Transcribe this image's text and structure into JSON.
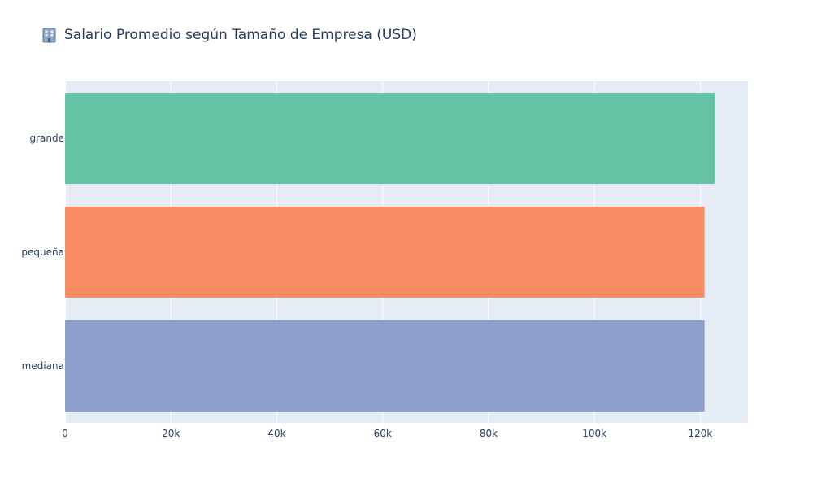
{
  "title": {
    "icon": "office-building-icon",
    "text": "Salario Promedio según Tamaño de Empresa (USD)"
  },
  "colors": {
    "plot_background": "#e5ecf6",
    "gridline": "#ffffff",
    "text": "#2a3f5f"
  },
  "chart_data": {
    "type": "bar",
    "orientation": "horizontal",
    "title": "Salario Promedio según Tamaño de Empresa (USD)",
    "xlabel": "",
    "ylabel": "",
    "categories": [
      "grande",
      "pequeña",
      "mediana"
    ],
    "values": [
      122800,
      120800,
      120800
    ],
    "colors": [
      "#66c2a5",
      "#fc8d62",
      "#8da0cb"
    ],
    "xlim": [
      0,
      129000
    ],
    "xticks": [
      0,
      20000,
      40000,
      60000,
      80000,
      100000,
      120000
    ],
    "xtick_labels": [
      "0",
      "20k",
      "40k",
      "60k",
      "80k",
      "100k",
      "120k"
    ],
    "grid": true,
    "legend": "none"
  }
}
